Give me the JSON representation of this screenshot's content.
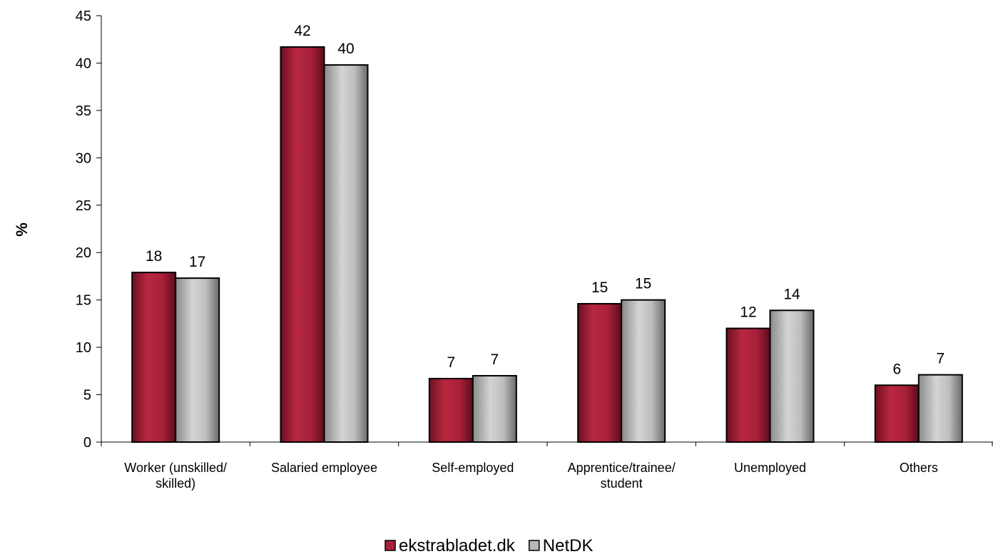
{
  "chart_data": {
    "type": "bar",
    "title": "",
    "xlabel": "",
    "ylabel": "%",
    "ylim": [
      0,
      45
    ],
    "yticks": [
      0,
      5,
      10,
      15,
      20,
      25,
      30,
      35,
      40,
      45
    ],
    "grid": false,
    "legend_position": "bottom",
    "categories": [
      [
        "Worker (unskilled/",
        "skilled)"
      ],
      [
        "Salaried employee"
      ],
      [
        "Self-employed"
      ],
      [
        "Apprentice/trainee/",
        "student"
      ],
      [
        "Unemployed"
      ],
      [
        "Others"
      ]
    ],
    "series": [
      {
        "name": "ekstrabladet.dk",
        "color": "#a8203a",
        "values": [
          17.9,
          41.7,
          6.7,
          14.6,
          12.0,
          6.0
        ],
        "labels": [
          "18",
          "42",
          "7",
          "15",
          "12",
          "6"
        ]
      },
      {
        "name": "NetDK",
        "color": "#b8b8b8",
        "values": [
          17.3,
          39.8,
          7.0,
          15.0,
          13.9,
          7.1
        ],
        "labels": [
          "17",
          "40",
          "7",
          "15",
          "14",
          "7"
        ]
      }
    ]
  }
}
